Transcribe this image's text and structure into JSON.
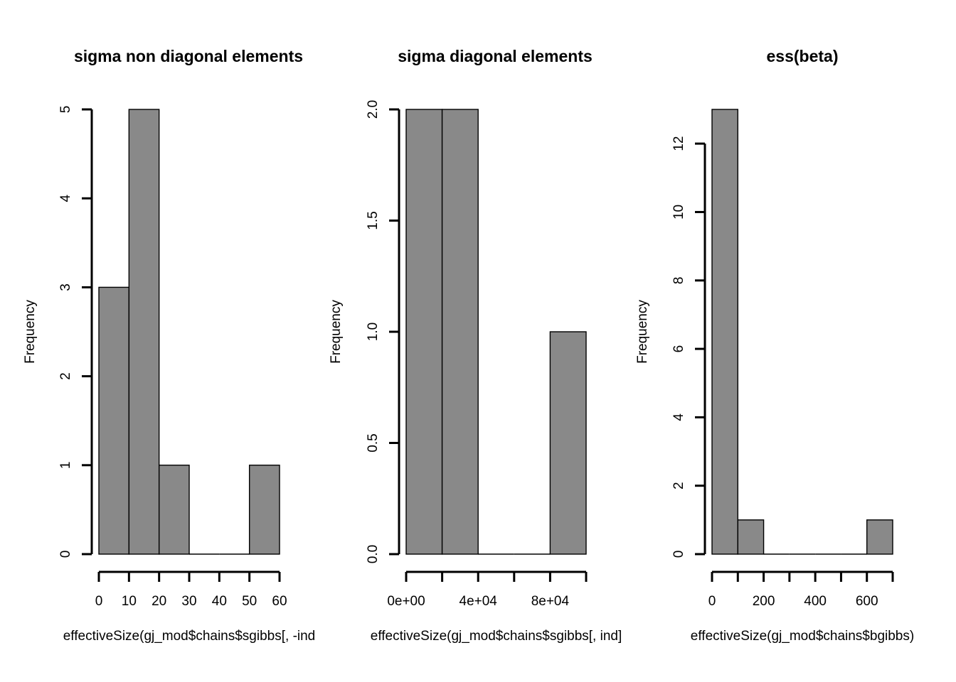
{
  "chart_data": [
    {
      "type": "bar",
      "title": "sigma non diagonal elements",
      "xlabel": "effectiveSize(gj_mod$chains$sgibbs[, -ind",
      "ylabel": "Frequency",
      "bin_edges": [
        0,
        10,
        20,
        30,
        40,
        50,
        60
      ],
      "values": [
        3,
        5,
        1,
        0,
        0,
        1
      ],
      "xlim": [
        0,
        60
      ],
      "ylim": [
        0,
        5
      ],
      "xticks": [
        0,
        10,
        20,
        30,
        40,
        50,
        60
      ],
      "xtick_labels": [
        "0",
        "10",
        "20",
        "30",
        "40",
        "50",
        "60"
      ],
      "yticks": [
        0,
        1,
        2,
        3,
        4,
        5
      ],
      "ytick_labels": [
        "0",
        "1",
        "2",
        "3",
        "4",
        "5"
      ],
      "bar_color": "#898989",
      "grid": false
    },
    {
      "type": "bar",
      "title": "sigma diagonal elements",
      "xlabel": "effectiveSize(gj_mod$chains$sgibbs[, ind]",
      "ylabel": "Frequency",
      "bin_edges": [
        0,
        20000,
        40000,
        60000,
        80000,
        100000
      ],
      "values": [
        2,
        2,
        0,
        0,
        1
      ],
      "xlim": [
        0,
        100000
      ],
      "ylim": [
        0,
        2
      ],
      "xticks": [
        0,
        20000,
        40000,
        60000,
        80000,
        100000
      ],
      "xtick_labels": [
        "0e+00",
        "",
        "4e+04",
        "",
        "8e+04",
        ""
      ],
      "yticks": [
        0,
        0.5,
        1,
        1.5,
        2
      ],
      "ytick_labels": [
        "0.0",
        "0.5",
        "1.0",
        "1.5",
        "2.0"
      ],
      "bar_color": "#898989",
      "grid": false
    },
    {
      "type": "bar",
      "title": "ess(beta)",
      "xlabel": "effectiveSize(gj_mod$chains$bgibbs)",
      "ylabel": "Frequency",
      "bin_edges": [
        0,
        100,
        200,
        300,
        400,
        500,
        600,
        700
      ],
      "values": [
        13,
        1,
        0,
        0,
        0,
        0,
        1
      ],
      "xlim": [
        0,
        700
      ],
      "ylim": [
        0,
        13
      ],
      "xticks": [
        0,
        100,
        200,
        300,
        400,
        500,
        600,
        700
      ],
      "xtick_labels": [
        "0",
        "",
        "200",
        "",
        "400",
        "",
        "600",
        ""
      ],
      "yticks": [
        0,
        2,
        4,
        6,
        8,
        10,
        12
      ],
      "ytick_labels": [
        "0",
        "2",
        "4",
        "6",
        "8",
        "10",
        "12"
      ],
      "bar_color": "#898989",
      "grid": false
    }
  ]
}
